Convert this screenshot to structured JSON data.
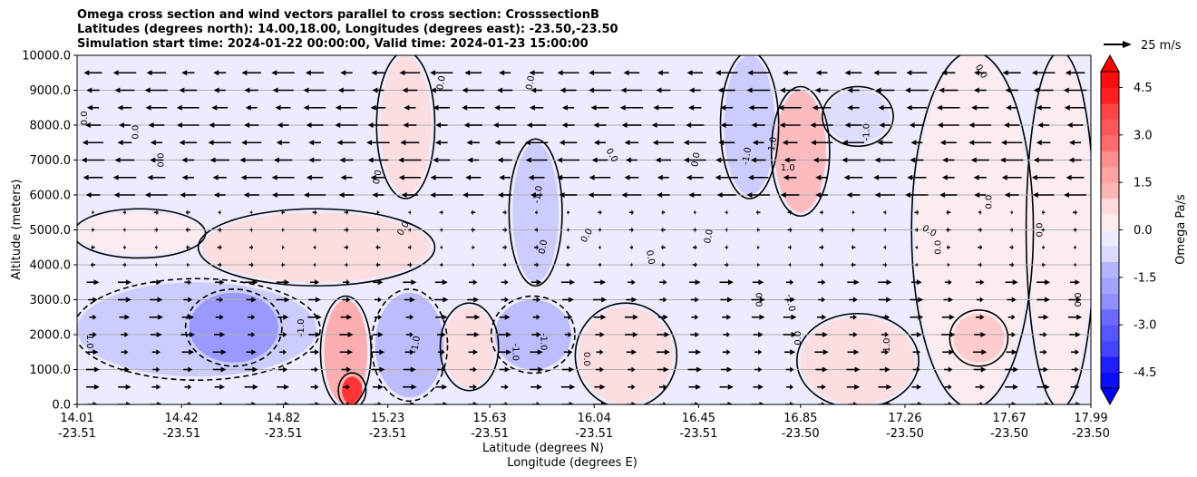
{
  "title": {
    "line1": "Omega cross section and wind vectors parallel to cross section: CrosssectionB",
    "line2": "Latitudes (degrees north): 14.00,18.00, Longitudes (degrees east): -23.50,-23.50",
    "line3": "Simulation start time: 2024-01-22 00:00:00, Valid time: 2024-01-23 15:00:00"
  },
  "chart_data": {
    "type": "heatmap",
    "ylabel": "Altitude (meters)",
    "xlabel_lat": "Latitude (degrees N)",
    "xlabel_lon": "Longitude (degrees E)",
    "ylim": [
      0,
      10000
    ],
    "yticks": [
      "0.0",
      "1000.0",
      "2000.0",
      "3000.0",
      "4000.0",
      "5000.0",
      "6000.0",
      "7000.0",
      "8000.0",
      "9000.0",
      "10000.0"
    ],
    "xlim": [
      14.01,
      17.99
    ],
    "xticks": [
      {
        "lat": "14.01",
        "lon": "-23.51"
      },
      {
        "lat": "14.42",
        "lon": "-23.51"
      },
      {
        "lat": "14.82",
        "lon": "-23.51"
      },
      {
        "lat": "15.23",
        "lon": "-23.51"
      },
      {
        "lat": "15.63",
        "lon": "-23.51"
      },
      {
        "lat": "16.04",
        "lon": "-23.51"
      },
      {
        "lat": "16.45",
        "lon": "-23.51"
      },
      {
        "lat": "16.85",
        "lon": "-23.50"
      },
      {
        "lat": "17.26",
        "lon": "-23.50"
      },
      {
        "lat": "17.67",
        "lon": "-23.50"
      },
      {
        "lat": "17.99",
        "lon": "-23.50"
      }
    ],
    "grid": "horizontal",
    "colorbar": {
      "label": "Omega Pa/s",
      "range": [
        -5,
        5
      ],
      "ticks": [
        "-4.5",
        "-3.0",
        "-1.5",
        "0.0",
        "1.5",
        "3.0",
        "4.5"
      ],
      "extend": "both",
      "min_color": "#0000ff",
      "zero_color": "#ffffff",
      "max_color": "#ff0000"
    },
    "quiver_key": {
      "label": "25 m/s",
      "speed": 25
    },
    "contour_labels": [
      "0.0",
      "-1.0",
      "1.0"
    ],
    "vectors": [
      {
        "z_min": 0,
        "z_max": 3500,
        "direction": "south-to-north",
        "speed": 12
      },
      {
        "z_min": 4000,
        "z_max": 5500,
        "direction": "mixed",
        "speed": 4
      },
      {
        "z_min": 6000,
        "z_max": 10000,
        "direction": "north-to-south",
        "speed": 20
      }
    ],
    "regions": [
      {
        "lat": [
          14.01,
          17.99
        ],
        "z": [
          0,
          10000
        ],
        "omega": -0.3
      },
      {
        "lat": [
          14.01,
          14.95
        ],
        "z": [
          800,
          3500
        ],
        "omega": -1.0
      },
      {
        "lat": [
          14.45,
          14.8
        ],
        "z": [
          1200,
          3200
        ],
        "omega": -2.2
      },
      {
        "lat": [
          14.01,
          14.5
        ],
        "z": [
          4300,
          5500
        ],
        "omega": 0.3
      },
      {
        "lat": [
          14.5,
          15.4
        ],
        "z": [
          3500,
          5500
        ],
        "omega": 0.4
      },
      {
        "lat": [
          14.98,
          15.15
        ],
        "z": [
          0,
          3000
        ],
        "omega": 1.8
      },
      {
        "lat": [
          15.05,
          15.13
        ],
        "z": [
          0,
          800
        ],
        "omega": 4.5
      },
      {
        "lat": [
          15.18,
          15.45
        ],
        "z": [
          200,
          3200
        ],
        "omega": -1.3
      },
      {
        "lat": [
          15.45,
          15.65
        ],
        "z": [
          500,
          2800
        ],
        "omega": 0.7
      },
      {
        "lat": [
          15.65,
          15.95
        ],
        "z": [
          1000,
          3000
        ],
        "omega": -1.5
      },
      {
        "lat": [
          15.72,
          15.9
        ],
        "z": [
          3500,
          7500
        ],
        "omega": -0.8
      },
      {
        "lat": [
          15.98,
          16.35
        ],
        "z": [
          0,
          2800
        ],
        "omega": 0.4
      },
      {
        "lat": [
          15.2,
          15.4
        ],
        "z": [
          6000,
          10000
        ],
        "omega": 0.4
      },
      {
        "lat": [
          16.55,
          16.75
        ],
        "z": [
          6000,
          10000
        ],
        "omega": -0.8
      },
      {
        "lat": [
          16.75,
          16.95
        ],
        "z": [
          5500,
          9000
        ],
        "omega": 1.2
      },
      {
        "lat": [
          16.95,
          17.2
        ],
        "z": [
          7500,
          9000
        ],
        "omega": -0.7
      },
      {
        "lat": [
          16.85,
          17.3
        ],
        "z": [
          0,
          2500
        ],
        "omega": 0.6
      },
      {
        "lat": [
          17.3,
          17.75
        ],
        "z": [
          0,
          10000
        ],
        "omega": 0.3
      },
      {
        "lat": [
          17.45,
          17.65
        ],
        "z": [
          1200,
          2600
        ],
        "omega": 0.8
      },
      {
        "lat": [
          17.75,
          17.99
        ],
        "z": [
          0,
          10000
        ],
        "omega": 0.2
      }
    ]
  }
}
